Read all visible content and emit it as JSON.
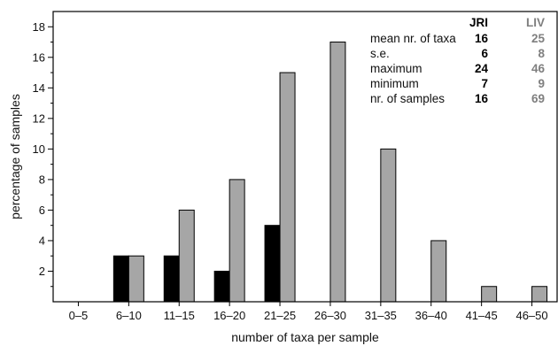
{
  "chart_data": {
    "type": "bar",
    "title": "",
    "xlabel": "number of taxa per sample",
    "ylabel": "percentage of samples",
    "categories": [
      "0–5",
      "6–10",
      "11–15",
      "16–20",
      "21–25",
      "26–30",
      "31–35",
      "36–40",
      "41–45",
      "46–50"
    ],
    "series": [
      {
        "name": "JRI",
        "color": "#000000",
        "values": [
          0,
          3,
          3,
          2,
          5,
          0,
          0,
          0,
          0,
          0
        ]
      },
      {
        "name": "LIV",
        "color": "#a6a6a6",
        "values": [
          0,
          3,
          6,
          8,
          15,
          17,
          10,
          4,
          1,
          1
        ]
      }
    ],
    "ylim": [
      0,
      19
    ],
    "yticks": [
      2,
      4,
      6,
      8,
      10,
      12,
      14,
      16,
      18
    ],
    "grid": false,
    "legend_table": {
      "placement": "top-right",
      "columns": [
        {
          "name": "JRI",
          "color": "#000000"
        },
        {
          "name": "LIV",
          "color": "#7f7f7f"
        }
      ],
      "rows": [
        {
          "label": "mean nr. of taxa",
          "values": [
            "16",
            "25"
          ]
        },
        {
          "label": "s.e.",
          "values": [
            "6",
            "8"
          ]
        },
        {
          "label": "maximum",
          "values": [
            "24",
            "46"
          ]
        },
        {
          "label": "minimum",
          "values": [
            "7",
            "9"
          ]
        },
        {
          "label": "nr. of samples",
          "values": [
            "16",
            "69"
          ]
        }
      ]
    }
  }
}
